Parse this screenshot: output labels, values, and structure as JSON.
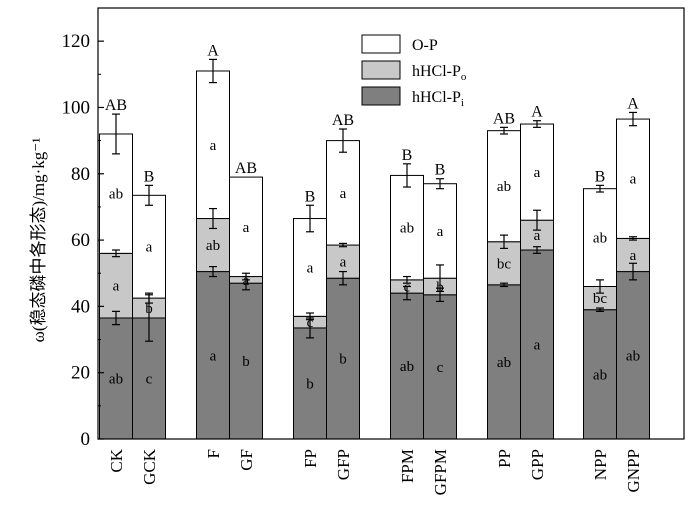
{
  "chart_data": {
    "type": "bar",
    "stacked": true,
    "ylabel": "ω(稳态磷中各形态)/mg·kg⁻¹",
    "ylim": [
      0,
      130
    ],
    "yticks": [
      0,
      20,
      40,
      60,
      80,
      100,
      120
    ],
    "grid": false,
    "legend_position": "top-right",
    "categories": [
      "CK",
      "GCK",
      "F",
      "GF",
      "FP",
      "GFP",
      "FPM",
      "GFPM",
      "PP",
      "GPP",
      "NPP",
      "GNPP"
    ],
    "series": [
      {
        "name": "hHCl-Pi",
        "legend": {
          "base": "hHCl-P",
          "sub": "i"
        },
        "color": "#7f7f7f",
        "values": [
          36.5,
          36.5,
          50.5,
          47,
          33.5,
          48.5,
          44,
          43.5,
          46.5,
          57,
          39,
          50.5
        ],
        "errors": [
          2,
          7,
          1.5,
          2,
          3,
          2,
          2,
          2,
          0.5,
          1,
          0.5,
          2.5
        ],
        "labels": [
          "ab",
          "c",
          "a",
          "b",
          "b",
          "b",
          "ab",
          "c",
          "ab",
          "a",
          "ab",
          "ab"
        ]
      },
      {
        "name": "hHCl-Po",
        "legend": {
          "base": "hHCl-P",
          "sub": "o"
        },
        "color": "#c8c8c8",
        "values": [
          19.5,
          6,
          16,
          2,
          3.5,
          10,
          4,
          5,
          13,
          9,
          7,
          10
        ],
        "errors": [
          1,
          1.5,
          3,
          1,
          1,
          0.5,
          1,
          4,
          2,
          3,
          2,
          0.5
        ],
        "labels": [
          "a",
          "b",
          "ab",
          "a",
          "c",
          "a",
          "c",
          "b",
          "bc",
          "a",
          "bc",
          "a"
        ]
      },
      {
        "name": "O-P",
        "legend": {
          "base": "O-P",
          "sub": ""
        },
        "color": "#ffffff",
        "values": [
          36,
          31,
          44.5,
          30,
          29.5,
          31.5,
          31.5,
          28.5,
          33.5,
          29,
          29.5,
          36
        ],
        "errors": [
          6,
          3,
          3.5,
          0,
          4,
          3.5,
          3.5,
          1.5,
          1,
          1,
          1,
          2
        ],
        "labels": [
          "ab",
          "a",
          "a",
          "a",
          "a",
          "a",
          "ab",
          "a",
          "ab",
          "a",
          "ab",
          "a"
        ]
      }
    ],
    "top_letters": [
      "AB",
      "B",
      "A",
      "AB",
      "B",
      "AB",
      "B",
      "B",
      "AB",
      "A",
      "B",
      "A"
    ]
  }
}
